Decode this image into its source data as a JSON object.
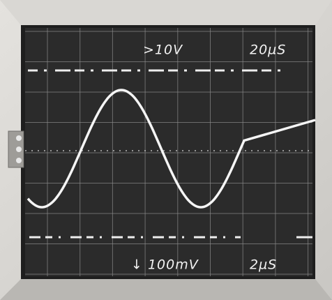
{
  "screen": {
    "top_left": ">10V",
    "top_right": "20µS",
    "bottom_left": "↓ 100mV",
    "bottom_right": "2µS"
  }
}
